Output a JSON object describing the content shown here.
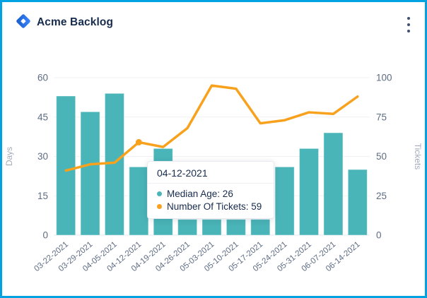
{
  "header": {
    "title": "Acme Backlog"
  },
  "colors": {
    "frame_border": "#00a2e2",
    "bar": "#4ab5b8",
    "line": "#f8a11d",
    "title_text": "#172b4d",
    "tick_text": "#5e6c84",
    "axis_name_text": "#a3abb8",
    "grid_line": "#f0f1f4"
  },
  "chart_data": {
    "type": "bar",
    "subtype": "combo-bar-line-dual-axis",
    "title": "Acme Backlog",
    "categories": [
      "03-22-2021",
      "03-29-2021",
      "04-05-2021",
      "04-12-2021",
      "04-19-2021",
      "04-26-2021",
      "05-03-2021",
      "05-10-2021",
      "05-17-2021",
      "05-24-2021",
      "05-31-2021",
      "06-07-2021",
      "06-14-2021"
    ],
    "series": [
      {
        "name": "Median Age",
        "type": "bar",
        "axis": "left",
        "color": "#4ab5b8",
        "values": [
          53,
          47,
          54,
          26,
          33,
          6,
          6,
          6,
          6,
          26,
          33,
          39,
          25
        ]
      },
      {
        "name": "Number Of Tickets",
        "type": "line",
        "axis": "right",
        "color": "#f8a11d",
        "values": [
          41,
          45,
          46,
          59,
          56,
          68,
          95,
          93,
          71,
          73,
          78,
          77,
          88
        ]
      }
    ],
    "left_axis": {
      "label": "Days",
      "min": 0,
      "max": 60,
      "ticks": [
        0,
        15,
        30,
        45,
        60
      ]
    },
    "right_axis": {
      "label": "Tickets",
      "min": 0,
      "max": 100,
      "ticks": [
        0,
        25,
        50,
        75,
        100
      ]
    },
    "grid": true,
    "legend_visible": false,
    "x_label_rotation": -40
  },
  "tooltip": {
    "title": "04-12-2021",
    "hover_index": 3,
    "rows": [
      {
        "name": "Median Age",
        "value": 26,
        "text": "Median Age: 26",
        "color": "#4ab5b8"
      },
      {
        "name": "Number Of Tickets",
        "value": 59,
        "text": "Number Of Tickets: 59",
        "color": "#f8a11d"
      }
    ]
  }
}
